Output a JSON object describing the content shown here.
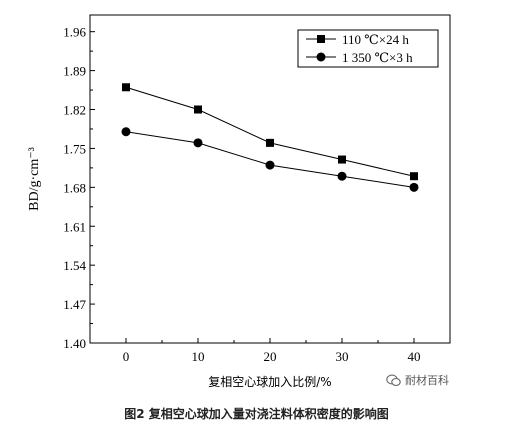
{
  "chart_data": {
    "type": "line",
    "x": [
      0,
      10,
      20,
      30,
      40
    ],
    "series": [
      {
        "name": "110 ℃×24 h",
        "marker": "square",
        "values": [
          1.86,
          1.82,
          1.76,
          1.73,
          1.7
        ]
      },
      {
        "name": "1 350 ℃×3 h",
        "marker": "circle",
        "values": [
          1.78,
          1.76,
          1.72,
          1.7,
          1.68
        ]
      }
    ],
    "xlabel": "复相空心球加入比例/%",
    "ylabel": "BD/g·cm⁻³",
    "xlim": [
      -5,
      45
    ],
    "ylim": [
      1.4,
      1.99
    ],
    "xticks": [
      "0",
      "10",
      "20",
      "30",
      "40"
    ],
    "yticks": [
      "1.40",
      "1.47",
      "1.54",
      "1.61",
      "1.68",
      "1.75",
      "1.82",
      "1.89",
      "1.96"
    ],
    "grid": false,
    "legend_position": "top-right",
    "colors": {
      "series": "#000000",
      "axis": "#000000"
    }
  },
  "caption": "图2 复相空心球加入量对浇注料体积密度的影响图",
  "watermark": {
    "text": "耐材百科",
    "icon": "wechat-icon"
  }
}
